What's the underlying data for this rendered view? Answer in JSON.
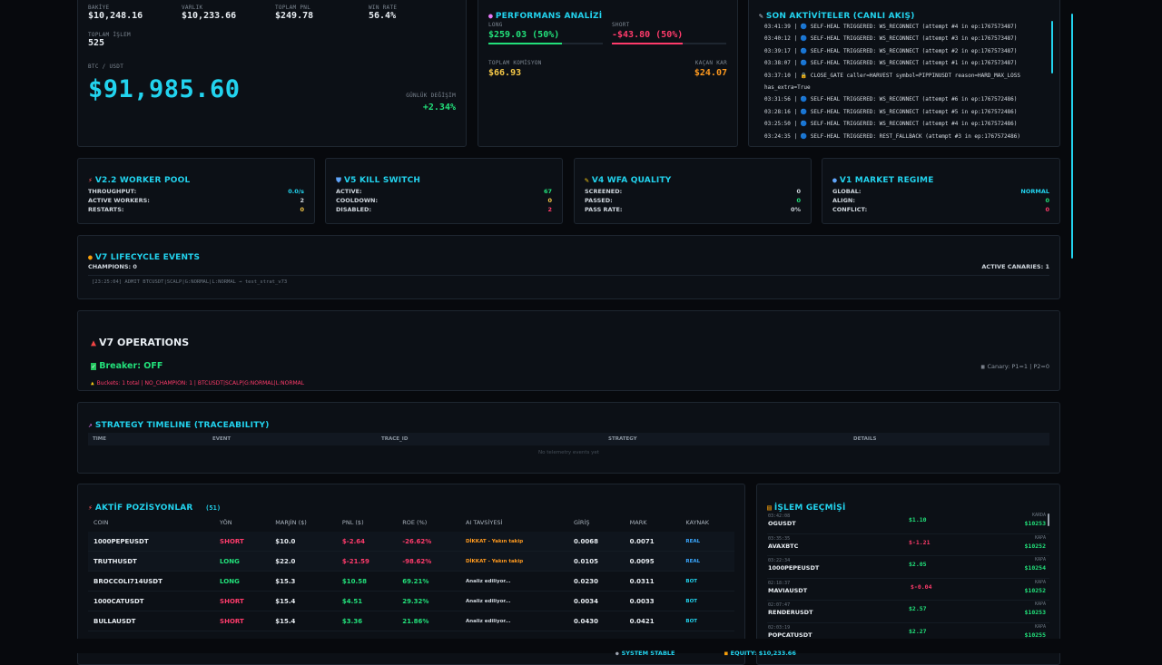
{
  "account": {
    "bakiye_label": "BAKİYE",
    "bakiye": "$10,248.16",
    "varlik_label": "VARLIK",
    "varlik": "$10,233.66",
    "pnl_label": "TOPLAM PNL",
    "pnl": "$249.78",
    "winrate_label": "WIN RATE",
    "winrate": "56.4%",
    "islem_label": "TOPLAM İŞLEM",
    "islem": "525",
    "pair_label": "BTC / USDT",
    "price": "$91,985.60",
    "change_label": "GÜNLÜK DEĞİŞİM",
    "change": "+2.34%"
  },
  "performance": {
    "title": "PERFORMANS ANALİZİ",
    "long_label": "LONG",
    "long_value": "$259.03 (50%)",
    "short_label": "SHORT",
    "short_value": "-$43.80 (50%)",
    "commission_label": "TOPLAM KOMİSYON",
    "commission": "$66.93",
    "missed_label": "KAÇAN KAR",
    "missed": "$24.07",
    "long_fill": 0.64,
    "short_fill": 0.62
  },
  "activity": {
    "title": "SON AKTİVİTELER (CANLI AKIŞ)",
    "lines": [
      "03:41:39 | 🔵 SELF-HEAL TRIGGERED: WS_RECONNECT (attempt #4 in ep:1767573487)",
      "03:40:12 | 🔵 SELF-HEAL TRIGGERED: WS_RECONNECT (attempt #3 in ep:1767573487)",
      "03:39:17 | 🔵 SELF-HEAL TRIGGERED: WS_RECONNECT (attempt #2 in ep:1767573487)",
      "03:38:07 | 🔵 SELF-HEAL TRIGGERED: WS_RECONNECT (attempt #1 in ep:1767573487)",
      "03:37:10 | 🔒 CLOSE_GATE caller=HARVEST symbol=PIPPINUSDT reason=HARD_MAX_LOSS",
      "has_extra=True",
      "03:31:56 | 🔵 SELF-HEAL TRIGGERED: WS_RECONNECT (attempt #6 in ep:1767572486)",
      "03:28:16 | 🔵 SELF-HEAL TRIGGERED: WS_RECONNECT (attempt #5 in ep:1767572486)",
      "03:25:50 | 🔵 SELF-HEAL TRIGGERED: WS_RECONNECT (attempt #4 in ep:1767572486)",
      "03:24:35 | 🔵 SELF-HEAL TRIGGERED: REST_FALLBACK (attempt #3 in ep:1767572486)"
    ]
  },
  "worker_pool": {
    "title": "V2.2 WORKER POOL",
    "rows": [
      {
        "label": "THROUGHPUT:",
        "value": "0.0/s"
      },
      {
        "label": "ACTIVE WORKERS:",
        "value": "2"
      },
      {
        "label": "RESTARTS:",
        "value": "0"
      }
    ]
  },
  "kill_switch": {
    "title": "V5 KILL SWITCH",
    "rows": [
      {
        "label": "ACTIVE:",
        "value": "67"
      },
      {
        "label": "COOLDOWN:",
        "value": "0"
      },
      {
        "label": "DISABLED:",
        "value": "2"
      }
    ]
  },
  "wfa": {
    "title": "V4 WFA QUALITY",
    "rows": [
      {
        "label": "SCREENED:",
        "value": "0"
      },
      {
        "label": "PASSED:",
        "value": "0"
      },
      {
        "label": "PASS RATE:",
        "value": "0%"
      }
    ]
  },
  "regime": {
    "title": "V1 MARKET REGIME",
    "rows": [
      {
        "label": "GLOBAL:",
        "value": "NORMAL"
      },
      {
        "label": "ALIGN:",
        "value": "0"
      },
      {
        "label": "CONFLICT:",
        "value": "0"
      }
    ]
  },
  "lifecycle": {
    "title": "V7 LIFECYCLE EVENTS",
    "champions": "CHAMPIONS: 0",
    "canaries": "ACTIVE CANARIES: 1",
    "event": "[23:25:04] ADMIT BTCUSDT|SCALP|G:NORMAL|L:NORMAL → test_strat_v73"
  },
  "operations": {
    "title": "V7 OPERATIONS",
    "breaker": "Breaker: OFF",
    "buckets": "Buckets: 1 total | NO_CHAMPION: 1 | BTCUSDT|SCALP|G:NORMAL|L:NORMAL",
    "canary": "Canary: P1=1 | P2=0"
  },
  "timeline": {
    "title": "STRATEGY TIMELINE (TRACEABILITY)",
    "columns": [
      "TIME",
      "EVENT",
      "TRACE_ID",
      "STRATEGY",
      "DETAILS"
    ],
    "empty": "No telemetry events yet"
  },
  "positions": {
    "title": "AKTİF POZİSYONLAR",
    "count": "(51)",
    "columns": [
      "COIN",
      "YÖN",
      "MARJİN ($)",
      "PNL ($)",
      "ROE (%)",
      "AI TAVSİYESİ",
      "GİRİŞ",
      "MARK",
      "KAYNAK"
    ],
    "rows": [
      {
        "coin": "1000PEPEUSDT",
        "side": "SHORT",
        "margin": "$10.0",
        "pnl": "$-2.64",
        "roe": "-26.62%",
        "advice": "DİKKAT - Yakın takip",
        "entry": "0.0068",
        "mark": "0.0071",
        "source": "REAL"
      },
      {
        "coin": "TRUTHUSDT",
        "side": "LONG",
        "margin": "$22.0",
        "pnl": "$-21.59",
        "roe": "-98.62%",
        "advice": "DİKKAT - Yakın takip",
        "entry": "0.0105",
        "mark": "0.0095",
        "source": "REAL"
      },
      {
        "coin": "BROCCOLI714USDT",
        "side": "LONG",
        "margin": "$15.3",
        "pnl": "$10.58",
        "roe": "69.21%",
        "advice": "Analiz ediliyor...",
        "entry": "0.0230",
        "mark": "0.0311",
        "source": "BOT"
      },
      {
        "coin": "1000CATUSDT",
        "side": "SHORT",
        "margin": "$15.4",
        "pnl": "$4.51",
        "roe": "29.32%",
        "advice": "Analiz ediliyor...",
        "entry": "0.0034",
        "mark": "0.0033",
        "source": "BOT"
      },
      {
        "coin": "BULLAUSDT",
        "side": "SHORT",
        "margin": "$15.4",
        "pnl": "$3.36",
        "roe": "21.86%",
        "advice": "Analiz ediliyor...",
        "entry": "0.0430",
        "mark": "0.0421",
        "source": "BOT"
      }
    ]
  },
  "history": {
    "title": "İŞLEM GEÇMİŞİ",
    "items": [
      {
        "time": "03:42:08",
        "coin": "OGUSDT",
        "pnl": "$1.10",
        "tag": "KARDA",
        "equity": "$10253"
      },
      {
        "time": "03:35:35",
        "coin": "AVAXBTC",
        "pnl": "$-1.21",
        "tag": "KAPA",
        "equity": "$10252"
      },
      {
        "time": "03:22:34",
        "coin": "1000PEPEUSDT",
        "pnl": "$2.05",
        "tag": "KAPA",
        "equity": "$10254"
      },
      {
        "time": "02:18:37",
        "coin": "MAVIAUSDT",
        "pnl": "$-0.04",
        "tag": "KAPA",
        "equity": "$10252"
      },
      {
        "time": "02:07:47",
        "coin": "RENDERUSDT",
        "pnl": "$2.57",
        "tag": "KAPA",
        "equity": "$10253"
      },
      {
        "time": "02:03:19",
        "coin": "POPCATUSDT",
        "pnl": "$2.27",
        "tag": "KAPA",
        "equity": "$10255"
      }
    ]
  },
  "status": {
    "system": "SYSTEM STABLE",
    "equity": "EQUITY: $10,233.66"
  }
}
